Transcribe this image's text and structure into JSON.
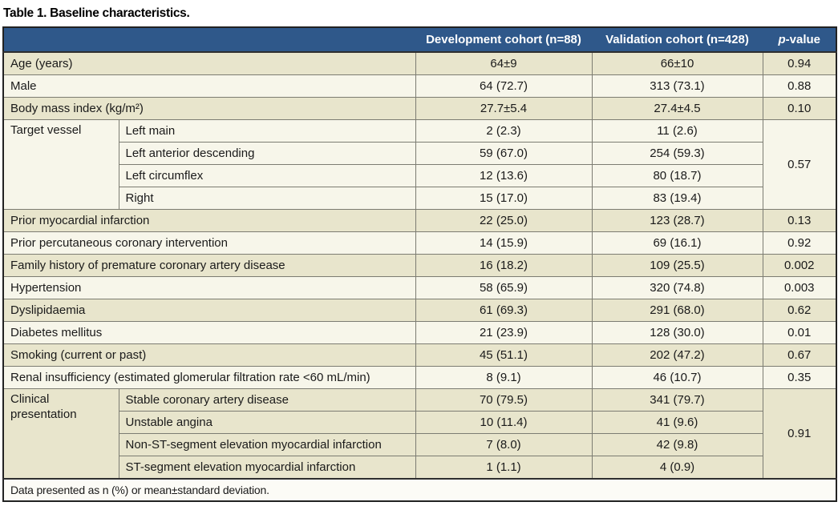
{
  "title": "Table 1. Baseline characteristics.",
  "table": {
    "header": {
      "col_dev": "Development cohort (n=88)",
      "col_val": "Validation cohort (n=428)",
      "p_italic": "p",
      "p_rest": "-value"
    },
    "rows": [
      {
        "label": "Age (years)",
        "dev": "64±9",
        "val": "66±10",
        "p": "0.94"
      },
      {
        "label": "Male",
        "dev": "64 (72.7)",
        "val": "313 (73.1)",
        "p": "0.88"
      },
      {
        "label": "Body mass index (kg/m²)",
        "dev": "27.7±5.4",
        "val": "27.4±4.5",
        "p": "0.10"
      },
      {
        "label": "Target vessel",
        "p": "0.57",
        "items": [
          {
            "label": "Left main",
            "dev": "2 (2.3)",
            "val": "11 (2.6)"
          },
          {
            "label": "Left anterior descending",
            "dev": "59 (67.0)",
            "val": "254 (59.3)"
          },
          {
            "label": "Left circumflex",
            "dev": "12 (13.6)",
            "val": "80 (18.7)"
          },
          {
            "label": "Right",
            "dev": "15 (17.0)",
            "val": "83 (19.4)"
          }
        ]
      },
      {
        "label": "Prior myocardial infarction",
        "dev": "22 (25.0)",
        "val": "123 (28.7)",
        "p": "0.13"
      },
      {
        "label": "Prior percutaneous coronary intervention",
        "dev": "14 (15.9)",
        "val": "69 (16.1)",
        "p": "0.92"
      },
      {
        "label": "Family history of premature coronary artery disease",
        "dev": "16 (18.2)",
        "val": "109 (25.5)",
        "p": "0.002"
      },
      {
        "label": "Hypertension",
        "dev": "58 (65.9)",
        "val": "320 (74.8)",
        "p": "0.003"
      },
      {
        "label": "Dyslipidaemia",
        "dev": "61 (69.3)",
        "val": "291 (68.0)",
        "p": "0.62"
      },
      {
        "label": "Diabetes mellitus",
        "dev": "21 (23.9)",
        "val": "128 (30.0)",
        "p": "0.01"
      },
      {
        "label": "Smoking (current or past)",
        "dev": "45 (51.1)",
        "val": "202 (47.2)",
        "p": "0.67"
      },
      {
        "label": "Renal insufficiency (estimated glomerular filtration rate <60 mL/min)",
        "dev": "8 (9.1)",
        "val": "46 (10.7)",
        "p": "0.35"
      },
      {
        "label": "Clinical presentation",
        "p": "0.91",
        "items": [
          {
            "label": "Stable coronary artery disease",
            "dev": "70 (79.5)",
            "val": "341 (79.7)"
          },
          {
            "label": "Unstable angina",
            "dev": "10 (11.4)",
            "val": "41 (9.6)"
          },
          {
            "label": "Non-ST-segment elevation myocardial infarction",
            "dev": "7 (8.0)",
            "val": "42 (9.8)"
          },
          {
            "label": "ST-segment elevation myocardial infarction",
            "dev": "1 (1.1)",
            "val": "4 (0.9)"
          }
        ]
      }
    ],
    "footnote": "Data presented as n (%) or mean±standard deviation."
  },
  "colors": {
    "header_bg": "#2f588a",
    "header_text": "#ffffff",
    "row_beige": "#e8e5cc",
    "row_cream": "#f7f6ea",
    "border_dark": "#222222",
    "border_gray": "#7c7c72"
  }
}
